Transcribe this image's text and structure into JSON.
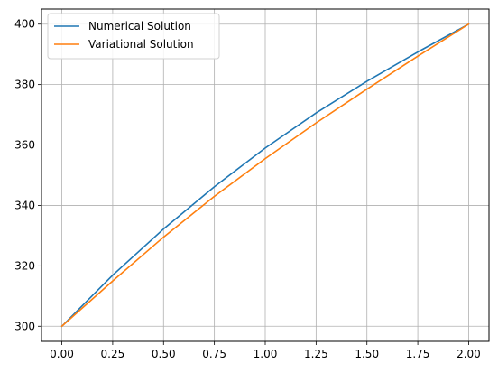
{
  "chart_data": {
    "type": "line",
    "title": "",
    "xlabel": "",
    "ylabel": "",
    "xlim": [
      -0.1,
      2.1
    ],
    "ylim": [
      295,
      405
    ],
    "grid": true,
    "legend_position": "top-left",
    "x_ticks": [
      "0.00",
      "0.25",
      "0.50",
      "0.75",
      "1.00",
      "1.25",
      "1.50",
      "1.75",
      "2.00"
    ],
    "y_ticks": [
      "300",
      "320",
      "340",
      "360",
      "380",
      "400"
    ],
    "x": [
      0.0,
      0.25,
      0.5,
      0.75,
      1.0,
      1.25,
      1.5,
      1.75,
      2.0
    ],
    "series": [
      {
        "name": "Numerical Solution",
        "color": "#1f77b4",
        "values": [
          300.0,
          316.9,
          332.2,
          346.2,
          359.0,
          370.6,
          381.1,
          390.8,
          400.0
        ]
      },
      {
        "name": "Variational Solution",
        "color": "#ff7f0e",
        "values": [
          300.0,
          315.0,
          329.5,
          343.0,
          355.5,
          367.3,
          378.5,
          389.4,
          400.0
        ]
      }
    ]
  }
}
